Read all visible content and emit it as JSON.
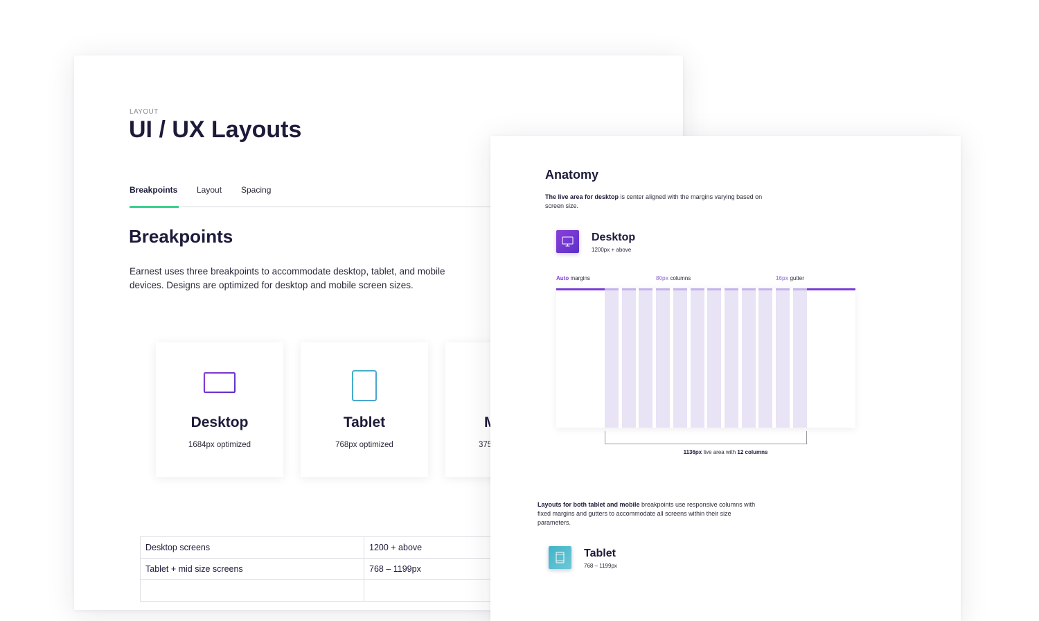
{
  "left_sheet": {
    "eyebrow": "LAYOUT",
    "title": "UI / UX Layouts",
    "tabs": [
      {
        "label": "Breakpoints",
        "active": true
      },
      {
        "label": "Layout",
        "active": false
      },
      {
        "label": "Spacing",
        "active": false
      }
    ],
    "section_title": "Breakpoints",
    "section_desc": "Earnest uses three breakpoints to accommodate desktop, tablet, and mobile devices. Designs are optimized for desktop and mobile screen sizes.",
    "cards": [
      {
        "icon": "monitor-icon",
        "name": "Desktop",
        "subtitle": "1684px optimized"
      },
      {
        "icon": "tablet-icon",
        "name": "Tablet",
        "subtitle": "768px optimized"
      },
      {
        "icon": "mobile-icon",
        "name": "M",
        "subtitle": "375"
      }
    ],
    "table": [
      [
        "Desktop screens",
        "1200 + above"
      ],
      [
        "Tablet + mid size screens",
        "768 – 1199px"
      ]
    ]
  },
  "right_sheet": {
    "title": "Anatomy",
    "desc_bold": "The live area for desktop",
    "desc_rest": " is center aligned with the margins varying based on screen size.",
    "desktop": {
      "icon": "monitor-icon",
      "name": "Desktop",
      "range": "1200px + above"
    },
    "grid_labels": {
      "margins_accent": "Auto",
      "margins_text": " margins",
      "columns_accent": "80px",
      "columns_text": " columns",
      "gutter_accent": "16px",
      "gutter_text": " gutter"
    },
    "grid": {
      "columns": 12
    },
    "live_area": {
      "width_bold": "1136px",
      "middle": " live area with ",
      "columns_bold": "12 columns"
    },
    "resp_bold": "Layouts for both tablet and mobile",
    "resp_rest": " breakpoints use responsive columns with fixed margins and gutters to accommodate all screens within their size parameters.",
    "tablet": {
      "icon": "tablet-icon",
      "name": "Tablet",
      "range": "768 – 1199px"
    }
  },
  "colors": {
    "accent_purple": "#7a3bd6",
    "accent_green": "#3ccf8e",
    "accent_teal": "#3fb4c8",
    "text_dark": "#1c1b3a"
  }
}
